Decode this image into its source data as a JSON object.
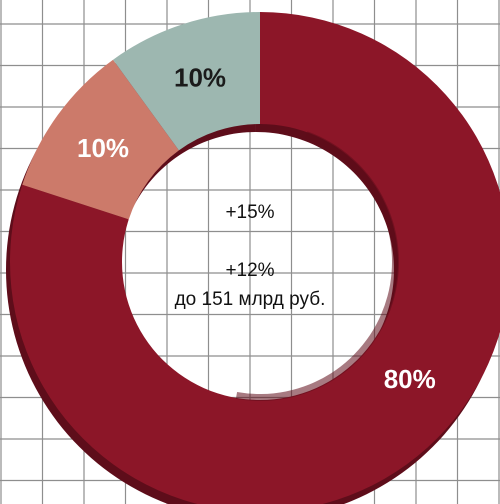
{
  "chart_data": {
    "type": "pie",
    "variant": "donut",
    "title": "",
    "slices": [
      {
        "label": "80%",
        "value": 80,
        "color": "#8c1628",
        "label_color": "#ffffff"
      },
      {
        "label": "10%",
        "value": 10,
        "color": "#cc7a6a",
        "label_color": "#ffffff"
      },
      {
        "label": "10%",
        "value": 10,
        "color": "#9db7b0",
        "label_color": "#1b1b1b"
      }
    ],
    "center_lines": [
      "+15%",
      "+12%",
      "до 151 млрд руб."
    ],
    "grid": true,
    "legend": "none"
  },
  "colors": {
    "grid_line": "#8e8e8e",
    "background": "#ffffff",
    "shadow": "#5e0d1a"
  }
}
